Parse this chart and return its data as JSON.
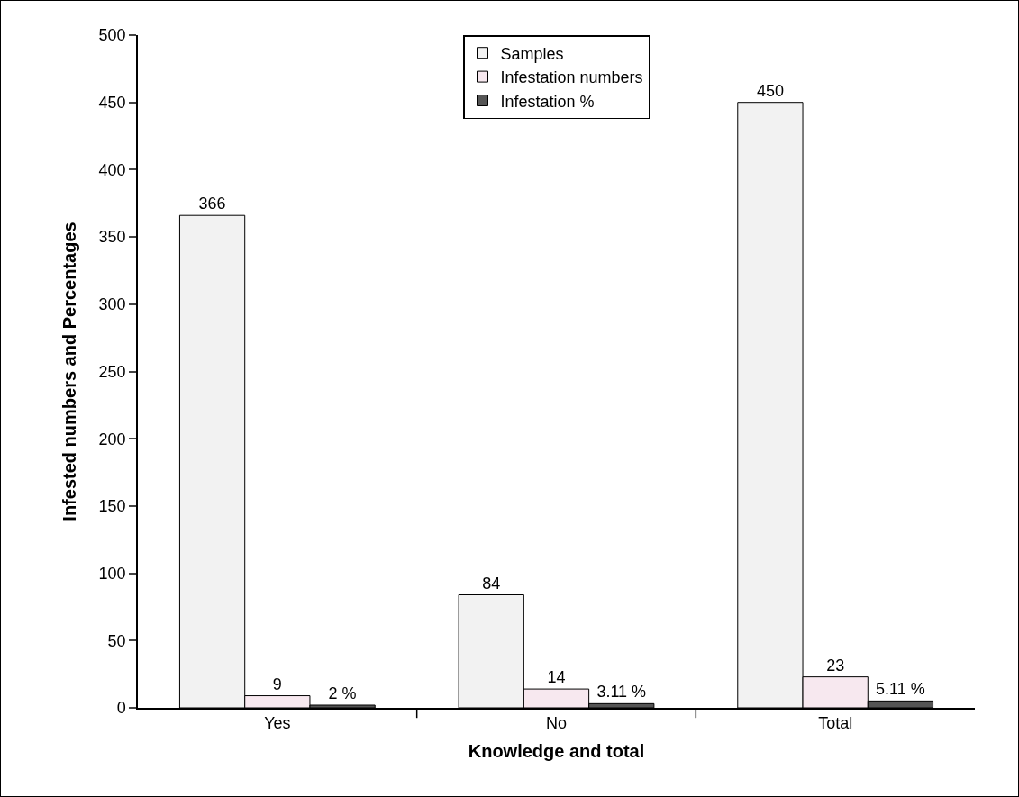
{
  "chart_data": {
    "type": "bar",
    "xlabel": "Knowledge and total",
    "ylabel": "Infested numbers and Percentages",
    "categories": [
      "Yes",
      "No",
      "Total"
    ],
    "series": [
      {
        "name": "Samples",
        "color": "#f2f2f2",
        "values": [
          366,
          84,
          450
        ],
        "value_labels": [
          "366",
          "84",
          "450"
        ]
      },
      {
        "name": "Infestation numbers",
        "color": "#f7e8ef",
        "values": [
          9,
          14,
          23
        ],
        "value_labels": [
          "9",
          "14",
          "23"
        ]
      },
      {
        "name": "Infestation %",
        "color": "#555555",
        "values": [
          2,
          3.11,
          5.11
        ],
        "value_labels": [
          "2 %",
          "3.11 %",
          "5.11 %"
        ]
      }
    ],
    "ylim": [
      0,
      500
    ],
    "yticks": [
      0,
      50,
      100,
      150,
      200,
      250,
      300,
      350,
      400,
      450,
      500
    ],
    "grid": false,
    "legend": "top"
  }
}
